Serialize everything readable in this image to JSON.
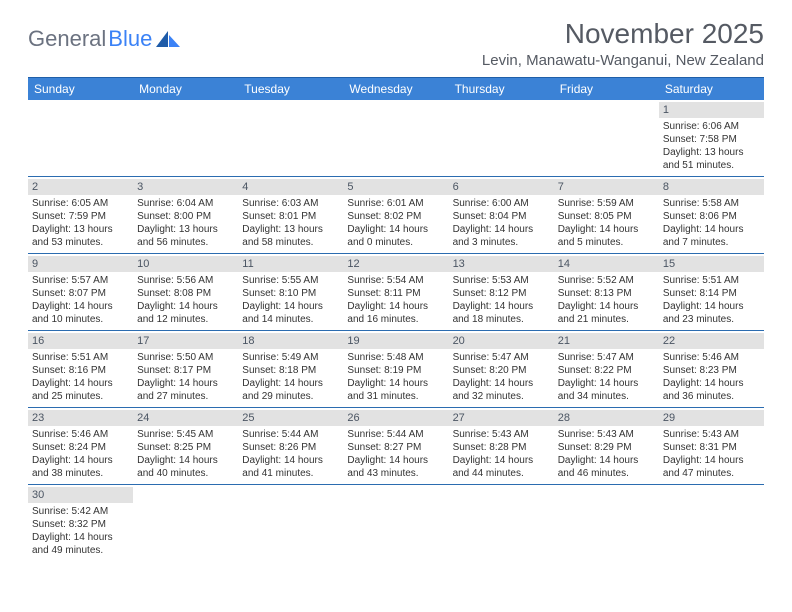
{
  "logo": {
    "textGray": "General",
    "textBlue": "Blue"
  },
  "title": "November 2025",
  "location": "Levin, Manawatu-Wanganui, New Zealand",
  "colors": {
    "headerBg": "#3b82d6",
    "headerText": "#ffffff",
    "dayBarBg": "#e2e2e2",
    "borderBlue": "#2b6cb0",
    "logoGray": "#6b7280",
    "logoBlue": "#3b82f6",
    "titleColor": "#555a63",
    "bodyText": "#333333"
  },
  "dayNames": [
    "Sunday",
    "Monday",
    "Tuesday",
    "Wednesday",
    "Thursday",
    "Friday",
    "Saturday"
  ],
  "weeks": [
    [
      null,
      null,
      null,
      null,
      null,
      null,
      {
        "num": "1",
        "sunrise": "Sunrise: 6:06 AM",
        "sunset": "Sunset: 7:58 PM",
        "daylight1": "Daylight: 13 hours",
        "daylight2": "and 51 minutes."
      }
    ],
    [
      {
        "num": "2",
        "sunrise": "Sunrise: 6:05 AM",
        "sunset": "Sunset: 7:59 PM",
        "daylight1": "Daylight: 13 hours",
        "daylight2": "and 53 minutes."
      },
      {
        "num": "3",
        "sunrise": "Sunrise: 6:04 AM",
        "sunset": "Sunset: 8:00 PM",
        "daylight1": "Daylight: 13 hours",
        "daylight2": "and 56 minutes."
      },
      {
        "num": "4",
        "sunrise": "Sunrise: 6:03 AM",
        "sunset": "Sunset: 8:01 PM",
        "daylight1": "Daylight: 13 hours",
        "daylight2": "and 58 minutes."
      },
      {
        "num": "5",
        "sunrise": "Sunrise: 6:01 AM",
        "sunset": "Sunset: 8:02 PM",
        "daylight1": "Daylight: 14 hours",
        "daylight2": "and 0 minutes."
      },
      {
        "num": "6",
        "sunrise": "Sunrise: 6:00 AM",
        "sunset": "Sunset: 8:04 PM",
        "daylight1": "Daylight: 14 hours",
        "daylight2": "and 3 minutes."
      },
      {
        "num": "7",
        "sunrise": "Sunrise: 5:59 AM",
        "sunset": "Sunset: 8:05 PM",
        "daylight1": "Daylight: 14 hours",
        "daylight2": "and 5 minutes."
      },
      {
        "num": "8",
        "sunrise": "Sunrise: 5:58 AM",
        "sunset": "Sunset: 8:06 PM",
        "daylight1": "Daylight: 14 hours",
        "daylight2": "and 7 minutes."
      }
    ],
    [
      {
        "num": "9",
        "sunrise": "Sunrise: 5:57 AM",
        "sunset": "Sunset: 8:07 PM",
        "daylight1": "Daylight: 14 hours",
        "daylight2": "and 10 minutes."
      },
      {
        "num": "10",
        "sunrise": "Sunrise: 5:56 AM",
        "sunset": "Sunset: 8:08 PM",
        "daylight1": "Daylight: 14 hours",
        "daylight2": "and 12 minutes."
      },
      {
        "num": "11",
        "sunrise": "Sunrise: 5:55 AM",
        "sunset": "Sunset: 8:10 PM",
        "daylight1": "Daylight: 14 hours",
        "daylight2": "and 14 minutes."
      },
      {
        "num": "12",
        "sunrise": "Sunrise: 5:54 AM",
        "sunset": "Sunset: 8:11 PM",
        "daylight1": "Daylight: 14 hours",
        "daylight2": "and 16 minutes."
      },
      {
        "num": "13",
        "sunrise": "Sunrise: 5:53 AM",
        "sunset": "Sunset: 8:12 PM",
        "daylight1": "Daylight: 14 hours",
        "daylight2": "and 18 minutes."
      },
      {
        "num": "14",
        "sunrise": "Sunrise: 5:52 AM",
        "sunset": "Sunset: 8:13 PM",
        "daylight1": "Daylight: 14 hours",
        "daylight2": "and 21 minutes."
      },
      {
        "num": "15",
        "sunrise": "Sunrise: 5:51 AM",
        "sunset": "Sunset: 8:14 PM",
        "daylight1": "Daylight: 14 hours",
        "daylight2": "and 23 minutes."
      }
    ],
    [
      {
        "num": "16",
        "sunrise": "Sunrise: 5:51 AM",
        "sunset": "Sunset: 8:16 PM",
        "daylight1": "Daylight: 14 hours",
        "daylight2": "and 25 minutes."
      },
      {
        "num": "17",
        "sunrise": "Sunrise: 5:50 AM",
        "sunset": "Sunset: 8:17 PM",
        "daylight1": "Daylight: 14 hours",
        "daylight2": "and 27 minutes."
      },
      {
        "num": "18",
        "sunrise": "Sunrise: 5:49 AM",
        "sunset": "Sunset: 8:18 PM",
        "daylight1": "Daylight: 14 hours",
        "daylight2": "and 29 minutes."
      },
      {
        "num": "19",
        "sunrise": "Sunrise: 5:48 AM",
        "sunset": "Sunset: 8:19 PM",
        "daylight1": "Daylight: 14 hours",
        "daylight2": "and 31 minutes."
      },
      {
        "num": "20",
        "sunrise": "Sunrise: 5:47 AM",
        "sunset": "Sunset: 8:20 PM",
        "daylight1": "Daylight: 14 hours",
        "daylight2": "and 32 minutes."
      },
      {
        "num": "21",
        "sunrise": "Sunrise: 5:47 AM",
        "sunset": "Sunset: 8:22 PM",
        "daylight1": "Daylight: 14 hours",
        "daylight2": "and 34 minutes."
      },
      {
        "num": "22",
        "sunrise": "Sunrise: 5:46 AM",
        "sunset": "Sunset: 8:23 PM",
        "daylight1": "Daylight: 14 hours",
        "daylight2": "and 36 minutes."
      }
    ],
    [
      {
        "num": "23",
        "sunrise": "Sunrise: 5:46 AM",
        "sunset": "Sunset: 8:24 PM",
        "daylight1": "Daylight: 14 hours",
        "daylight2": "and 38 minutes."
      },
      {
        "num": "24",
        "sunrise": "Sunrise: 5:45 AM",
        "sunset": "Sunset: 8:25 PM",
        "daylight1": "Daylight: 14 hours",
        "daylight2": "and 40 minutes."
      },
      {
        "num": "25",
        "sunrise": "Sunrise: 5:44 AM",
        "sunset": "Sunset: 8:26 PM",
        "daylight1": "Daylight: 14 hours",
        "daylight2": "and 41 minutes."
      },
      {
        "num": "26",
        "sunrise": "Sunrise: 5:44 AM",
        "sunset": "Sunset: 8:27 PM",
        "daylight1": "Daylight: 14 hours",
        "daylight2": "and 43 minutes."
      },
      {
        "num": "27",
        "sunrise": "Sunrise: 5:43 AM",
        "sunset": "Sunset: 8:28 PM",
        "daylight1": "Daylight: 14 hours",
        "daylight2": "and 44 minutes."
      },
      {
        "num": "28",
        "sunrise": "Sunrise: 5:43 AM",
        "sunset": "Sunset: 8:29 PM",
        "daylight1": "Daylight: 14 hours",
        "daylight2": "and 46 minutes."
      },
      {
        "num": "29",
        "sunrise": "Sunrise: 5:43 AM",
        "sunset": "Sunset: 8:31 PM",
        "daylight1": "Daylight: 14 hours",
        "daylight2": "and 47 minutes."
      }
    ],
    [
      {
        "num": "30",
        "sunrise": "Sunrise: 5:42 AM",
        "sunset": "Sunset: 8:32 PM",
        "daylight1": "Daylight: 14 hours",
        "daylight2": "and 49 minutes."
      },
      null,
      null,
      null,
      null,
      null,
      null
    ]
  ]
}
